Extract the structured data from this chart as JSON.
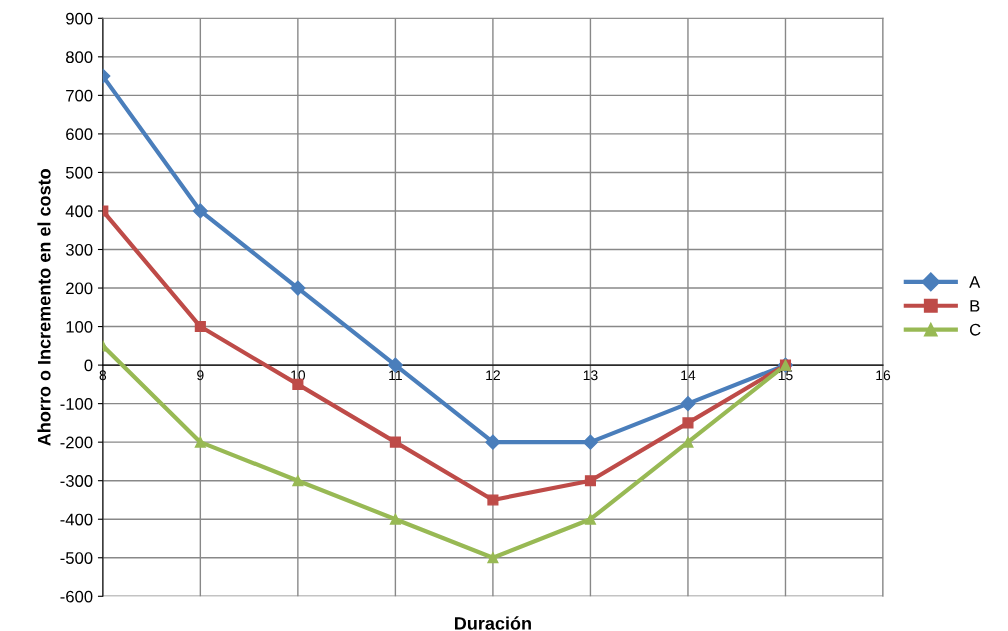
{
  "chart_data": {
    "type": "line",
    "xlabel": "Duración",
    "ylabel": "Ahorro o Incremento en el costo",
    "x": [
      8,
      9,
      10,
      11,
      12,
      13,
      14,
      15
    ],
    "series": [
      {
        "name": "A",
        "color": "#4a7ebb",
        "marker": "diamond",
        "values": [
          750,
          400,
          200,
          0,
          -200,
          -200,
          -100,
          0
        ]
      },
      {
        "name": "B",
        "color": "#be4b48",
        "marker": "square",
        "values": [
          400,
          100,
          -50,
          -200,
          -350,
          -300,
          -150,
          0
        ]
      },
      {
        "name": "C",
        "color": "#98b954",
        "marker": "triangle",
        "values": [
          50,
          -200,
          -300,
          -400,
          -500,
          -400,
          -200,
          0
        ]
      }
    ],
    "xlim": [
      8,
      16
    ],
    "xticks": [
      8,
      9,
      10,
      11,
      12,
      13,
      14,
      15,
      16
    ],
    "ylim": [
      -600,
      900
    ],
    "yticks": [
      -600,
      -500,
      -400,
      -300,
      -200,
      -100,
      0,
      100,
      200,
      300,
      400,
      500,
      600,
      700,
      800,
      900
    ],
    "grid": true,
    "legend": "right",
    "line_style": "solid"
  }
}
